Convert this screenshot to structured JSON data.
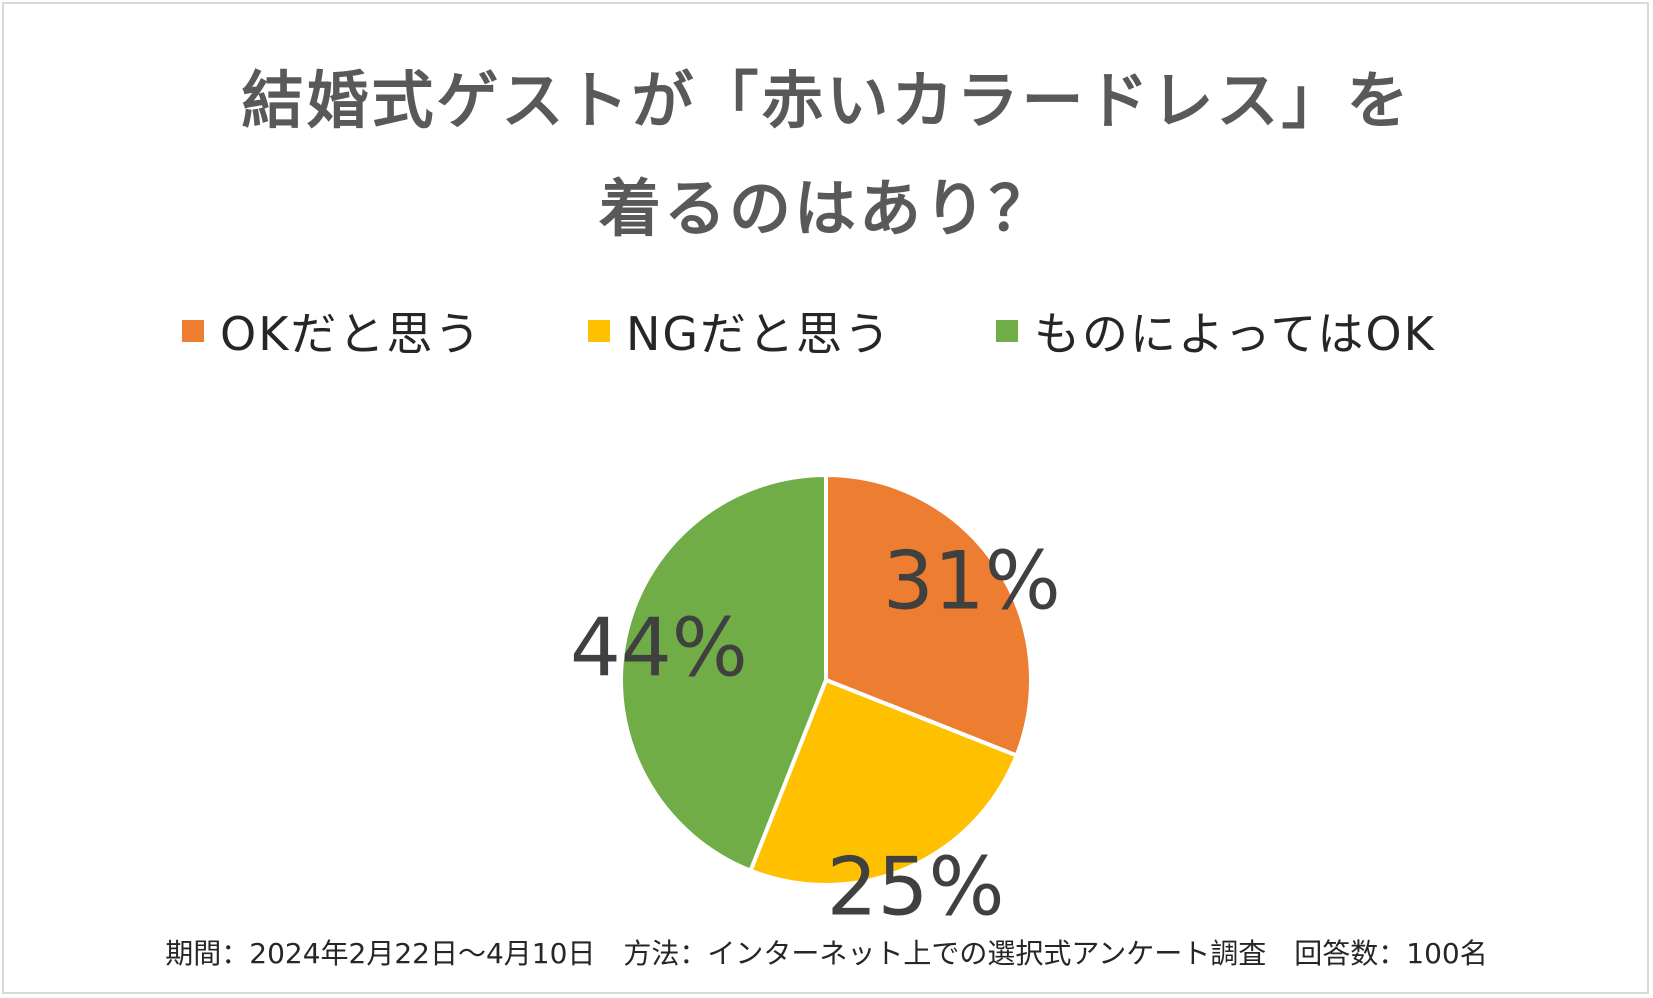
{
  "title_lines": [
    "結婚式ゲストが「赤いカラードレス」を",
    "着るのはあり？"
  ],
  "footnote": "期間：2024年2月22日～4月10日　方法：インターネット上での選択式アンケート調査　回答数：100名",
  "chart_data": {
    "type": "pie",
    "title": "結婚式ゲストが「赤いカラードレス」を着るのはあり？",
    "categories": [
      "OKだと思う",
      "NGだと思う",
      "ものによってはOK"
    ],
    "values": [
      31,
      25,
      44
    ],
    "labels": [
      "31%",
      "25%",
      "44%"
    ],
    "colors": [
      "#ED7D31",
      "#FFC000",
      "#70AD47"
    ],
    "start_angle": "12 o'clock",
    "direction": "clockwise",
    "legend_position": "top"
  }
}
